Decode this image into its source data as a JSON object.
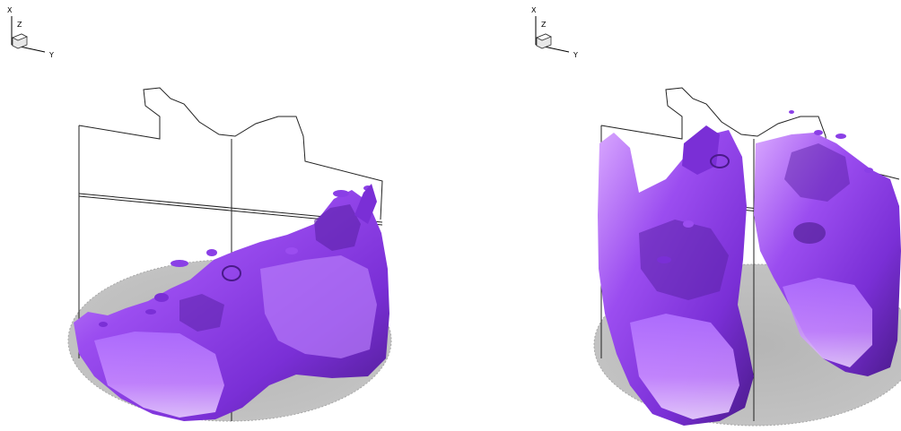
{
  "panels": [
    {
      "id": "left",
      "triad": {
        "x_label": "X",
        "z_label": "Z",
        "y_label": "Y"
      }
    },
    {
      "id": "right",
      "triad": {
        "x_label": "X",
        "z_label": "Z",
        "y_label": "Y"
      }
    }
  ],
  "colors": {
    "isosurface": "#9b4df0",
    "isosurface_dark": "#4a1a8a",
    "isosurface_light": "#e8c8ff",
    "floor_disk": "#b8b8b8",
    "wireframe": "#222222"
  }
}
